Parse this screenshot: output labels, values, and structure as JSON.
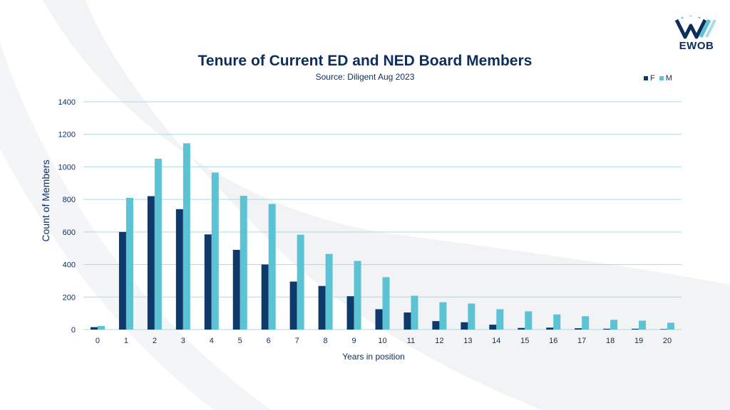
{
  "brand": {
    "name": "EWOB",
    "colors": {
      "dark": "#0d2d5c",
      "light": "#5bc3d3",
      "grid": "#a9dbe3"
    }
  },
  "chart_data": {
    "type": "bar",
    "title": "Tenure of Current ED and NED Board Members",
    "subtitle": "Source:  Diligent Aug 2023",
    "xlabel": "Years in position",
    "ylabel": "Count of Members",
    "ylim": [
      0,
      1400
    ],
    "yticks": [
      0,
      200,
      400,
      600,
      800,
      1000,
      1200,
      1400
    ],
    "grid": true,
    "legend_position": "top-right",
    "categories": [
      "0",
      "1",
      "2",
      "3",
      "4",
      "5",
      "6",
      "7",
      "8",
      "9",
      "10",
      "11",
      "12",
      "13",
      "14",
      "15",
      "16",
      "17",
      "18",
      "19",
      "20"
    ],
    "series": [
      {
        "name": "F",
        "color": "#0d3a6b",
        "values": [
          15,
          600,
          820,
          740,
          585,
          490,
          400,
          295,
          268,
          205,
          125,
          105,
          52,
          45,
          30,
          10,
          12,
          8,
          5,
          5,
          3
        ]
      },
      {
        "name": "M",
        "color": "#5bc3d3",
        "values": [
          22,
          810,
          1050,
          1145,
          965,
          822,
          772,
          583,
          465,
          422,
          322,
          208,
          168,
          160,
          125,
          112,
          93,
          82,
          60,
          55,
          42
        ]
      }
    ]
  }
}
